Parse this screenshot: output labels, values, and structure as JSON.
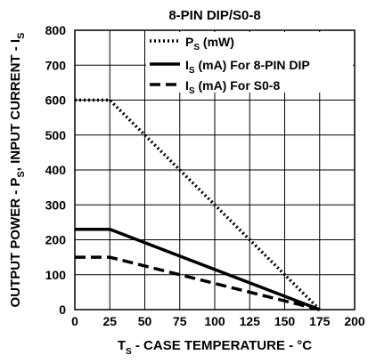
{
  "chart_data": {
    "type": "line",
    "title": "8-PIN DIP/S0-8",
    "xlabel": {
      "main": "T",
      "sub": "S",
      "rest": " - CASE TEMPERATURE - °C"
    },
    "ylabel": {
      "p1": "OUTPUT POWER - P",
      "sub1": "S",
      "p2": ", INPUT CURRENT - I",
      "sub2": "S"
    },
    "xlim": [
      0,
      200
    ],
    "ylim": [
      0,
      800
    ],
    "xticks": [
      "0",
      "25",
      "50",
      "75",
      "100",
      "125",
      "150",
      "175",
      "200"
    ],
    "yticks": [
      "0",
      "100",
      "200",
      "300",
      "400",
      "500",
      "600",
      "700",
      "800"
    ],
    "grid": true,
    "legend_position": "top-right",
    "series": [
      {
        "name": {
          "main": "P",
          "sub": "S",
          "rest": " (mW)"
        },
        "style": "dotted",
        "x": [
          0,
          25,
          175
        ],
        "y": [
          600,
          600,
          0
        ]
      },
      {
        "name": {
          "main": "I",
          "sub": "S",
          "rest": " (mA) For 8-PIN DIP"
        },
        "style": "solid",
        "x": [
          0,
          25,
          175
        ],
        "y": [
          230,
          230,
          0
        ]
      },
      {
        "name": {
          "main": "I",
          "sub": "S",
          "rest": " (mA) For S0-8"
        },
        "style": "dashed",
        "x": [
          0,
          25,
          175
        ],
        "y": [
          150,
          150,
          0
        ]
      }
    ]
  }
}
